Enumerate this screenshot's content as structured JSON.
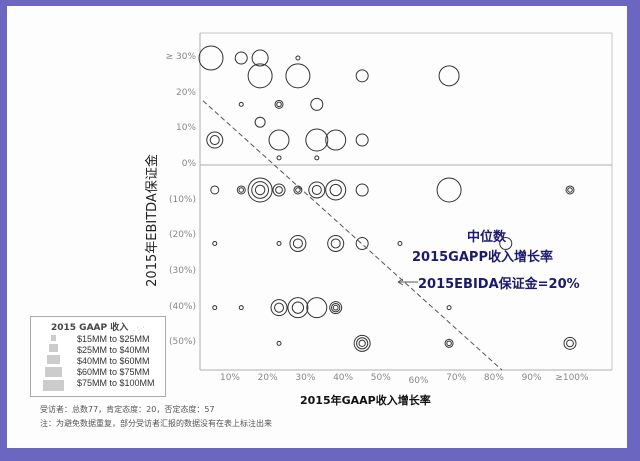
{
  "chart_data": {
    "type": "scatter",
    "subtype": "bubble",
    "title": "",
    "xlabel": "2015年GAAP收入增长率",
    "ylabel": "2015年EBITDA保证金",
    "x_ticks": [
      "10%",
      "20%",
      "30%",
      "40%",
      "50%",
      "60%",
      "70%",
      "80%",
      "90%",
      "≥100%"
    ],
    "y_ticks": [
      "≥ 30%",
      "20%",
      "10%",
      "0%",
      "(10%)",
      "(20%)",
      "(30%)",
      "(40%)",
      "(50%)"
    ],
    "xlim": [
      0,
      100
    ],
    "ylim": [
      -55,
      35
    ],
    "grid": false,
    "reference_line": {
      "label": "0%",
      "y": 0
    },
    "median_line": {
      "from": [
        0,
        18
      ],
      "to": [
        77,
        -55
      ],
      "style": "dashed"
    },
    "legend": {
      "title": "2015 GAAP  收入",
      "position": "lower-left",
      "entries": [
        "$15MM to $25MM",
        "$25MM to $40MM",
        "$40MM to $60MM",
        "$60MM to $75MM",
        "$75MM to $100MM"
      ]
    },
    "annotations": [
      {
        "text": "中位数",
        "line": 1
      },
      {
        "text": "2015GAPP收入增长率",
        "line": 2
      },
      {
        "text": "2015EBIDA保证金=20%",
        "line": 3,
        "arrow": "left"
      }
    ],
    "points": [
      {
        "x": 0,
        "y": 30,
        "r": 12,
        "rings": 1
      },
      {
        "x": 8,
        "y": 30,
        "r": 6,
        "rings": 1
      },
      {
        "x": 13,
        "y": 30,
        "r": 8,
        "rings": 1
      },
      {
        "x": 13,
        "y": 25,
        "r": 12,
        "rings": 1
      },
      {
        "x": 23,
        "y": 30,
        "r": 2,
        "rings": 1
      },
      {
        "x": 23,
        "y": 25,
        "r": 12,
        "rings": 1
      },
      {
        "x": 40,
        "y": 25,
        "r": 6,
        "rings": 1
      },
      {
        "x": 63,
        "y": 25,
        "r": 10,
        "rings": 1
      },
      {
        "x": 8,
        "y": 17,
        "r": 2,
        "rings": 1
      },
      {
        "x": 18,
        "y": 17,
        "r": 4,
        "rings": 2
      },
      {
        "x": 28,
        "y": 17,
        "r": 6,
        "rings": 1
      },
      {
        "x": 13,
        "y": 12,
        "r": 5,
        "rings": 1
      },
      {
        "x": 1,
        "y": 7,
        "r": 8,
        "rings": 2
      },
      {
        "x": 18,
        "y": 7,
        "r": 10,
        "rings": 1
      },
      {
        "x": 28,
        "y": 7,
        "r": 11,
        "rings": 1
      },
      {
        "x": 33,
        "y": 7,
        "r": 10,
        "rings": 1
      },
      {
        "x": 40,
        "y": 7,
        "r": 6,
        "rings": 1
      },
      {
        "x": 18,
        "y": 2,
        "r": 2,
        "rings": 1
      },
      {
        "x": 28,
        "y": 2,
        "r": 2,
        "rings": 1
      },
      {
        "x": 1,
        "y": -7,
        "r": 4,
        "rings": 1
      },
      {
        "x": 8,
        "y": -7,
        "r": 4,
        "rings": 2
      },
      {
        "x": 13,
        "y": -7,
        "r": 12,
        "rings": 3
      },
      {
        "x": 18,
        "y": -7,
        "r": 6,
        "rings": 2
      },
      {
        "x": 23,
        "y": -7,
        "r": 4,
        "rings": 2
      },
      {
        "x": 28,
        "y": -7,
        "r": 8,
        "rings": 2
      },
      {
        "x": 33,
        "y": -7,
        "r": 10,
        "rings": 2
      },
      {
        "x": 40,
        "y": -7,
        "r": 6,
        "rings": 1
      },
      {
        "x": 63,
        "y": -7,
        "r": 12,
        "rings": 1
      },
      {
        "x": 95,
        "y": -7,
        "r": 4,
        "rings": 2
      },
      {
        "x": 1,
        "y": -22,
        "r": 2,
        "rings": 1
      },
      {
        "x": 18,
        "y": -22,
        "r": 2,
        "rings": 1
      },
      {
        "x": 23,
        "y": -22,
        "r": 8,
        "rings": 2
      },
      {
        "x": 33,
        "y": -22,
        "r": 8,
        "rings": 2
      },
      {
        "x": 40,
        "y": -22,
        "r": 6,
        "rings": 1
      },
      {
        "x": 50,
        "y": -22,
        "r": 2,
        "rings": 1
      },
      {
        "x": 78,
        "y": -22,
        "r": 6,
        "rings": 1
      },
      {
        "x": 1,
        "y": -40,
        "r": 2,
        "rings": 1
      },
      {
        "x": 8,
        "y": -40,
        "r": 2,
        "rings": 1
      },
      {
        "x": 18,
        "y": -40,
        "r": 8,
        "rings": 2
      },
      {
        "x": 23,
        "y": -40,
        "r": 10,
        "rings": 2
      },
      {
        "x": 28,
        "y": -40,
        "r": 10,
        "rings": 1
      },
      {
        "x": 33,
        "y": -40,
        "r": 6,
        "rings": 3
      },
      {
        "x": 63,
        "y": -40,
        "r": 2,
        "rings": 1
      },
      {
        "x": 18,
        "y": -50,
        "r": 2,
        "rings": 1
      },
      {
        "x": 40,
        "y": -50,
        "r": 8,
        "rings": 3
      },
      {
        "x": 63,
        "y": -50,
        "r": 4,
        "rings": 2
      },
      {
        "x": 95,
        "y": -50,
        "r": 6,
        "rings": 2
      }
    ]
  },
  "labels": {
    "ylabel": "2015年EBITDA保证金",
    "xlabel": "2015年GAAP收入增长率",
    "legend_title": "2015 GAAP  收入",
    "legend_items": [
      "$15MM to $25MM",
      "$25MM to $40MM",
      "$40MM to $60MM",
      "$60MM to $75MM",
      "$75MM to $100MM"
    ],
    "annotation_1": "中位数",
    "annotation_2": "2015GAPP收入增长率",
    "annotation_3": "2015EBIDA保证金=20%",
    "footnote_1": "受访者：总数77，肯定态度：20，否定态度：57",
    "footnote_2": "注：为避免数据重复，部分受访者汇报的数据没有在表上标注出来",
    "y_ticks": [
      "≥ 30%",
      "20%",
      "10%",
      "0%",
      "(10%)",
      "(20%)",
      "(30%)",
      "(40%)",
      "(50%)"
    ],
    "x_ticks": [
      "10%",
      "20%",
      "30%",
      "40%",
      "50%",
      "60%",
      "70%",
      "80%",
      "90%",
      "≥100%"
    ]
  },
  "colors": {
    "frame": "#6b67c0",
    "background": "#fdfdfd",
    "axis": "#b0b0b0",
    "bubble_stroke": "#333333",
    "annotation_text": "#1c1a6e",
    "tick_text": "#888888"
  }
}
